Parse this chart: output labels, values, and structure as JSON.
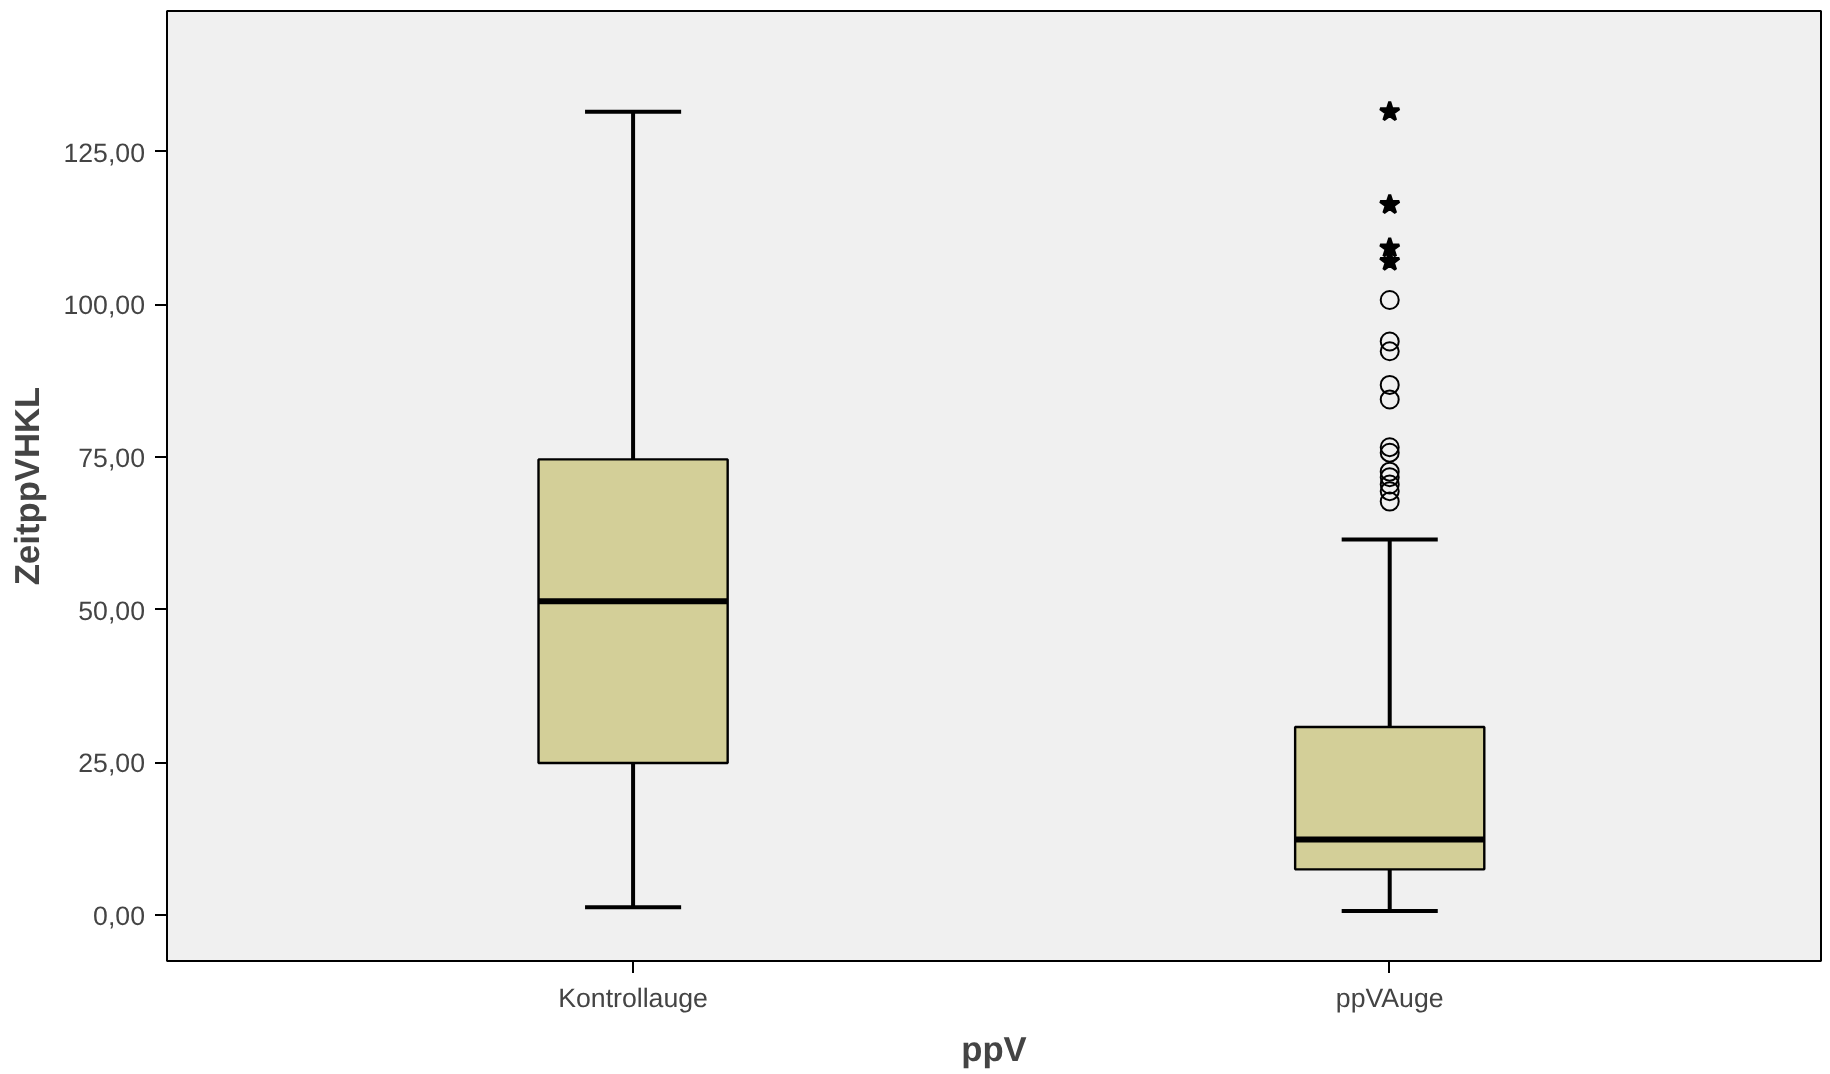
{
  "chart_data": {
    "type": "box",
    "xlabel": "ppV",
    "ylabel": "ZeitppVHKL",
    "categories": [
      "Kontrollauge",
      "ppVAuge"
    ],
    "ylim": [
      -7.5,
      148
    ],
    "yticks": [
      {
        "value": 0,
        "label": "0,00"
      },
      {
        "value": 25,
        "label": "25,00"
      },
      {
        "value": 50,
        "label": "50,00"
      },
      {
        "value": 75,
        "label": "75,00"
      },
      {
        "value": 100,
        "label": "100,00"
      },
      {
        "value": 125,
        "label": "125,00"
      }
    ],
    "grid": false,
    "series": [
      {
        "color": "#d3cf98",
        "boxes": [
          {
            "low": 1.3,
            "q1": 24.9,
            "median": 51.4,
            "q3": 74.6,
            "high": 131.5
          },
          {
            "low": 0.7,
            "q1": 7.5,
            "median": 12.4,
            "q3": 30.8,
            "high": 61.5,
            "outliers": [
              100.7,
              93.9,
              92.3,
              86.8,
              84.4,
              76.6,
              75.7,
              72.6,
              71.7,
              70.5,
              69.4,
              67.7
            ]
          }
        ]
      },
      {
        "type": "scatter",
        "marker": "star",
        "color": "#000000",
        "x": [
          "ppVAuge",
          "ppVAuge",
          "ppVAuge",
          "ppVAuge"
        ],
        "values": [
          131.5,
          116.3,
          109.2,
          107.0
        ]
      }
    ]
  }
}
